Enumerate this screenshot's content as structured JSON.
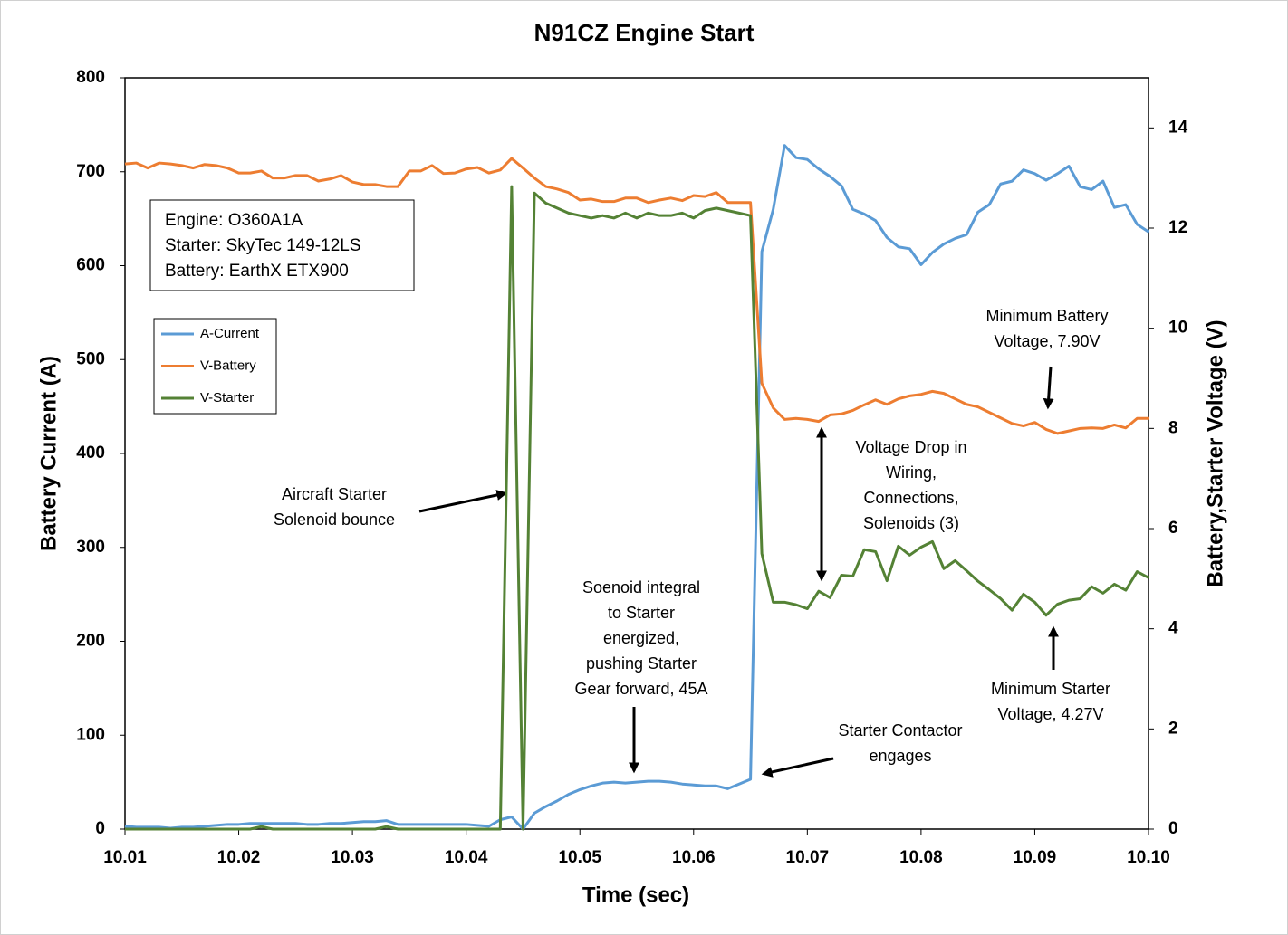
{
  "chart_data": {
    "type": "line",
    "title": "N91CZ Engine Start",
    "x_label": "Time (sec)",
    "y_label": "Battery Current (A)",
    "y2_label": "Battery,Starter Voltage (V)",
    "x": [
      10.01,
      10.011,
      10.012,
      10.013,
      10.014,
      10.015,
      10.016,
      10.017,
      10.018,
      10.019,
      10.02,
      10.021,
      10.022,
      10.023,
      10.024,
      10.025,
      10.026,
      10.027,
      10.028,
      10.029,
      10.03,
      10.031,
      10.032,
      10.033,
      10.034,
      10.035,
      10.036,
      10.037,
      10.038,
      10.039,
      10.04,
      10.041,
      10.042,
      10.043,
      10.044,
      10.045,
      10.046,
      10.047,
      10.048,
      10.049,
      10.05,
      10.051,
      10.052,
      10.053,
      10.054,
      10.055,
      10.056,
      10.057,
      10.058,
      10.059,
      10.06,
      10.061,
      10.062,
      10.063,
      10.064,
      10.065,
      10.066,
      10.067,
      10.068,
      10.069,
      10.07,
      10.071,
      10.072,
      10.073,
      10.074,
      10.075,
      10.076,
      10.077,
      10.078,
      10.079,
      10.08,
      10.081,
      10.082,
      10.083,
      10.084,
      10.085,
      10.086,
      10.087,
      10.088,
      10.089,
      10.09,
      10.091,
      10.092,
      10.093,
      10.094,
      10.095,
      10.096,
      10.097,
      10.098,
      10.099,
      10.1
    ],
    "series": [
      {
        "name": "A-Current",
        "color": "#5b9bd5",
        "values": [
          3,
          2,
          2,
          2,
          1,
          2,
          2,
          3,
          4,
          5,
          5,
          6,
          6,
          6,
          6,
          6,
          5,
          5,
          6,
          6,
          7,
          8,
          8,
          9,
          5,
          5,
          5,
          5,
          5,
          5,
          5,
          4,
          3,
          10,
          13,
          0,
          17,
          24,
          30,
          37,
          42,
          46,
          49,
          50,
          49,
          50,
          51,
          51,
          50,
          48,
          47,
          46,
          46,
          43,
          48,
          53,
          615,
          660,
          728,
          715,
          713,
          703,
          695,
          685,
          660,
          655,
          648,
          630,
          620,
          618,
          601,
          614,
          623,
          629,
          633,
          657,
          665,
          687,
          690,
          702,
          698,
          691,
          698,
          706,
          684,
          681,
          690,
          662,
          665,
          644,
          636
        ]
      },
      {
        "name": "V-Battery",
        "color": "#ed7d31",
        "axis": "y2",
        "values": [
          13.28,
          13.3,
          13.2,
          13.3,
          13.28,
          13.25,
          13.2,
          13.27,
          13.25,
          13.2,
          13.1,
          13.1,
          13.14,
          13.0,
          13.0,
          13.05,
          13.05,
          12.94,
          12.98,
          13.05,
          12.92,
          12.87,
          12.87,
          12.83,
          12.83,
          13.14,
          13.14,
          13.25,
          13.09,
          13.1,
          13.18,
          13.21,
          13.1,
          13.16,
          13.39,
          13.2,
          13.0,
          12.83,
          12.78,
          12.71,
          12.56,
          12.58,
          12.53,
          12.53,
          12.6,
          12.6,
          12.51,
          12.56,
          12.6,
          12.55,
          12.65,
          12.63,
          12.71,
          12.51,
          12.51,
          12.51,
          8.9,
          8.41,
          8.18,
          8.2,
          8.18,
          8.14,
          8.27,
          8.29,
          8.36,
          8.47,
          8.57,
          8.48,
          8.59,
          8.65,
          8.68,
          8.74,
          8.7,
          8.59,
          8.48,
          8.43,
          8.32,
          8.21,
          8.1,
          8.05,
          8.12,
          7.98,
          7.9,
          7.95,
          8.0,
          8.01,
          8.0,
          8.07,
          8.01,
          8.2,
          8.2
        ]
      },
      {
        "name": "V-Starter",
        "color": "#548235",
        "axis": "y2",
        "values": [
          0,
          0,
          0,
          0,
          0,
          0,
          0,
          0,
          0,
          0,
          0,
          0,
          0.05,
          0,
          0,
          0,
          0,
          0,
          0,
          0,
          0,
          0,
          0,
          0.05,
          0,
          0,
          0,
          0,
          0,
          0,
          0,
          0,
          0,
          0,
          12.83,
          0,
          12.7,
          12.5,
          12.4,
          12.3,
          12.25,
          12.2,
          12.25,
          12.2,
          12.3,
          12.2,
          12.3,
          12.25,
          12.25,
          12.3,
          12.2,
          12.35,
          12.4,
          12.35,
          12.3,
          12.25,
          5.5,
          4.53,
          4.53,
          4.48,
          4.4,
          4.75,
          4.62,
          5.07,
          5.05,
          5.58,
          5.54,
          4.96,
          5.65,
          5.47,
          5.63,
          5.74,
          5.2,
          5.36,
          5.16,
          4.95,
          4.78,
          4.6,
          4.37,
          4.69,
          4.53,
          4.27,
          4.49,
          4.57,
          4.6,
          4.84,
          4.71,
          4.89,
          4.77,
          5.14,
          5.02
        ]
      }
    ],
    "xlim": [
      10.01,
      10.1
    ],
    "xticks": [
      10.01,
      10.02,
      10.03,
      10.04,
      10.05,
      10.06,
      10.07,
      10.08,
      10.09,
      {
        "value": 10.1,
        "label": "10.10"
      }
    ],
    "ylim": [
      0,
      800
    ],
    "yticks": [
      0,
      100,
      200,
      300,
      400,
      500,
      600,
      700,
      800
    ],
    "y2lim": [
      0,
      15
    ],
    "y2ticks": [
      0,
      2,
      4,
      6,
      8,
      10,
      12,
      14
    ],
    "info_box": [
      "Engine: O360A1A",
      "Starter: SkyTec 149-12LS",
      "Battery: EarthX ETX900"
    ],
    "annotations": [
      [
        "Aircraft Starter",
        "Solenoid bounce"
      ],
      [
        "Soenoid integral",
        "to Starter",
        "energized,",
        "pushing Starter",
        "Gear forward, 45A"
      ],
      [
        "Starter Contactor",
        "engages"
      ],
      [
        "Voltage Drop in",
        "Wiring,",
        "Connections,",
        "Solenoids (3)"
      ],
      [
        "Minimum Battery",
        "Voltage, 7.90V"
      ],
      [
        "Minimum Starter",
        "Voltage, 4.27V"
      ]
    ]
  }
}
